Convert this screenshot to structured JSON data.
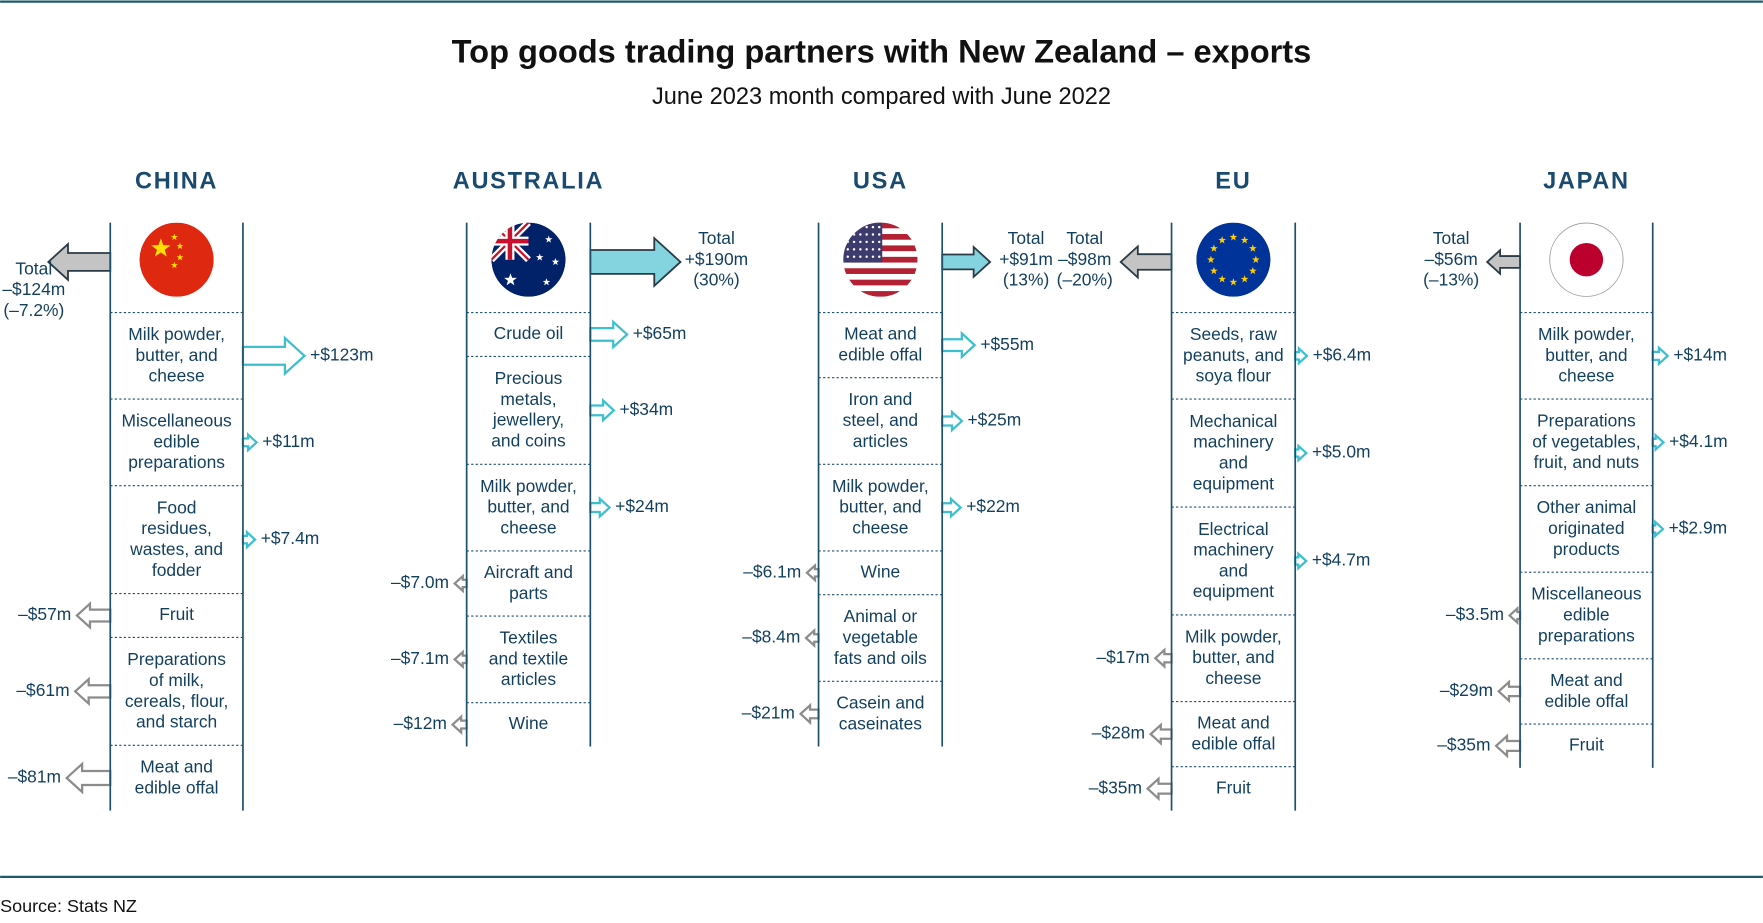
{
  "chart_data": {
    "type": "flow",
    "title": "Top goods trading partners with New Zealand – exports",
    "subtitle": "June 2023 month compared with June 2022",
    "source": "Source: Stats NZ",
    "total_text": "Total",
    "positive_color": "#3cbfcf",
    "negative_color": "#8c8c8c",
    "positive_total_fill": "#84d4df",
    "negative_total_fill": "#c4c4c4",
    "panels": [
      {
        "name": "CHINA",
        "total": -124,
        "total_label": "–$124m",
        "total_pct": -7.2,
        "total_pct_label": "(–7.2%)",
        "categories": [
          "Milk powder,\nbutter, and\ncheese",
          "Miscellaneous\nedible\npreparations",
          "Food\nresidues,\nwastes, and\nfodder",
          "Fruit",
          "Preparations\nof milk,\ncereals, flour,\nand starch",
          "Meat and\nedible offal"
        ],
        "values": [
          123,
          11,
          7.4,
          -57,
          -61,
          -81
        ],
        "value_labels": [
          "+$123m",
          "+$11m",
          "+$7.4m",
          "–$57m",
          "–$61m",
          "–$81m"
        ]
      },
      {
        "name": "AUSTRALIA",
        "total": 190,
        "total_label": "+$190m",
        "total_pct": 30,
        "total_pct_label": "(30%)",
        "categories": [
          "Crude oil",
          "Precious\nmetals,\njewellery,\nand coins",
          "Milk powder,\nbutter, and\ncheese",
          "Aircraft and\nparts",
          "Textiles\nand textile\narticles",
          "Wine"
        ],
        "values": [
          65,
          34,
          24,
          -7.0,
          -7.1,
          -12
        ],
        "value_labels": [
          "+$65m",
          "+$34m",
          "+$24m",
          "–$7.0m",
          "–$7.1m",
          "–$12m"
        ]
      },
      {
        "name": "USA",
        "total": 91,
        "total_label": "+$91m",
        "total_pct": 13,
        "total_pct_label": "(13%)",
        "categories": [
          "Meat and\nedible offal",
          "Iron and\nsteel, and\narticles",
          "Milk powder,\nbutter, and\ncheese",
          "Wine",
          "Animal or\nvegetable\nfats and oils",
          "Casein and\ncaseinates"
        ],
        "values": [
          55,
          25,
          22,
          -6.1,
          -8.4,
          -21
        ],
        "value_labels": [
          "+$55m",
          "+$25m",
          "+$22m",
          "–$6.1m",
          "–$8.4m",
          "–$21m"
        ]
      },
      {
        "name": "EU",
        "total": -98,
        "total_label": "–$98m",
        "total_pct": -20,
        "total_pct_label": "(–20%)",
        "categories": [
          "Seeds, raw\npeanuts, and\nsoya flour",
          "Mechanical\nmachinery\nand\nequipment",
          "Electrical\nmachinery\nand\nequipment",
          "Milk powder,\nbutter, and\ncheese",
          "Meat and\nedible offal",
          "Fruit"
        ],
        "values": [
          6.4,
          5.0,
          4.7,
          -17,
          -28,
          -35
        ],
        "value_labels": [
          "+$6.4m",
          "+$5.0m",
          "+$4.7m",
          "–$17m",
          "–$28m",
          "–$35m"
        ]
      },
      {
        "name": "JAPAN",
        "total": -56,
        "total_label": "–$56m",
        "total_pct": -13,
        "total_pct_label": "(–13%)",
        "categories": [
          "Milk powder,\nbutter, and\ncheese",
          "Preparations\nof vegetables,\nfruit, and nuts",
          "Other animal\noriginated\nproducts",
          "Miscellaneous\nedible\npreparations",
          "Meat and\nedible offal",
          "Fruit"
        ],
        "values": [
          14,
          4.1,
          2.9,
          -3.5,
          -29,
          -35
        ],
        "value_labels": [
          "+$14m",
          "+$4.1m",
          "+$2.9m",
          "–$3.5m",
          "–$29m",
          "–$35m"
        ]
      }
    ]
  }
}
